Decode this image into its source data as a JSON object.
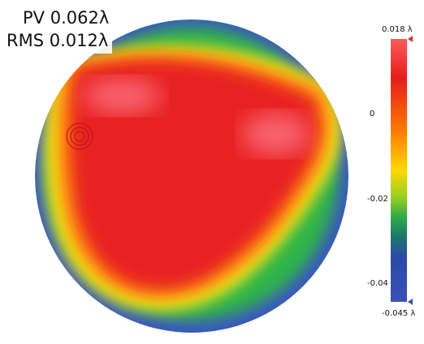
{
  "stats": {
    "pv": "PV 0.062λ",
    "rms": "RMS 0.012λ"
  },
  "colorbar": {
    "max_label": "0.018 λ",
    "min_label": "-0.045 λ",
    "ticks": [
      {
        "value": 0,
        "label": "0"
      },
      {
        "value": -0.02,
        "label": "-0.02"
      },
      {
        "value": -0.04,
        "label": "-0.04"
      }
    ],
    "range": [
      -0.045,
      0.018
    ],
    "gradient": [
      "#ff4a4a",
      "#e81c1c",
      "#ff6a00",
      "#ffd000",
      "#f0e800",
      "#3cb83c",
      "#1a8a6a",
      "#2a4aa8",
      "#3b4fb8"
    ]
  },
  "map": {
    "colors": {
      "edge": "#3a55c0",
      "green": "#2fb44a",
      "yellow": "#f4e81a",
      "orange": "#ff8a10",
      "red": "#e82020",
      "peak": "#ff7a8a"
    }
  }
}
